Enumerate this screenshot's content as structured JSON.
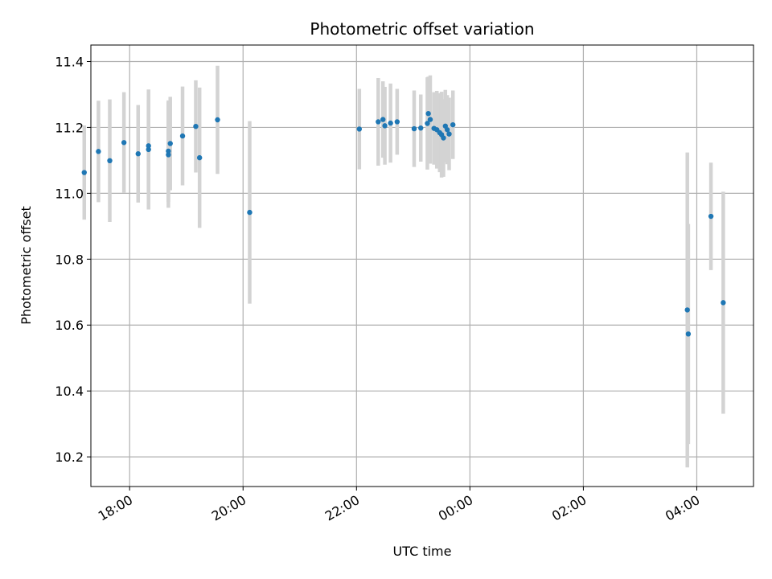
{
  "chart_data": {
    "type": "scatter",
    "title": "Photometric offset variation",
    "xlabel": "UTC time",
    "ylabel": "Photometric offset",
    "x_tick_labels": [
      "18:00",
      "20:00",
      "22:00",
      "00:00",
      "02:00",
      "04:00"
    ],
    "y_tick_labels": [
      "10.2",
      "10.4",
      "10.6",
      "10.8",
      "11.0",
      "11.2",
      "11.4"
    ],
    "x_ticks": [
      "18:00",
      "20:00",
      "22:00",
      "00:00",
      "02:00",
      "04:00"
    ],
    "y_ticks": [
      10.2,
      10.4,
      10.6,
      10.8,
      11.0,
      11.2,
      11.4
    ],
    "xlim": [
      "17:19",
      "05:00"
    ],
    "ylim": [
      10.11,
      11.45
    ],
    "grid": true,
    "marker_color": "#1f77b4",
    "errorbar_color": "#d3d3d3",
    "points": [
      {
        "t": "17:12",
        "y": 11.063,
        "err": 0.143
      },
      {
        "t": "17:27",
        "y": 11.127,
        "err": 0.154
      },
      {
        "t": "17:39",
        "y": 11.099,
        "err": 0.186
      },
      {
        "t": "17:54",
        "y": 11.154,
        "err": 0.153
      },
      {
        "t": "18:09",
        "y": 11.12,
        "err": 0.148
      },
      {
        "t": "18:20",
        "y": 11.133,
        "err": 0.182
      },
      {
        "t": "18:20",
        "y": 11.144,
        "err": 0.14
      },
      {
        "t": "18:41",
        "y": 11.117,
        "err": 0.161
      },
      {
        "t": "18:41",
        "y": 11.128,
        "err": 0.154
      },
      {
        "t": "18:43",
        "y": 11.151,
        "err": 0.142
      },
      {
        "t": "18:56",
        "y": 11.174,
        "err": 0.15
      },
      {
        "t": "19:10",
        "y": 11.203,
        "err": 0.14
      },
      {
        "t": "19:14",
        "y": 11.108,
        "err": 0.213
      },
      {
        "t": "19:33",
        "y": 11.223,
        "err": 0.164
      },
      {
        "t": "20:07",
        "y": 10.942,
        "err": 0.277
      },
      {
        "t": "22:03",
        "y": 11.195,
        "err": 0.122
      },
      {
        "t": "22:23",
        "y": 11.217,
        "err": 0.133
      },
      {
        "t": "22:28",
        "y": 11.224,
        "err": 0.116
      },
      {
        "t": "22:30",
        "y": 11.205,
        "err": 0.118
      },
      {
        "t": "22:36",
        "y": 11.213,
        "err": 0.12
      },
      {
        "t": "22:43",
        "y": 11.217,
        "err": 0.1
      },
      {
        "t": "23:01",
        "y": 11.196,
        "err": 0.116
      },
      {
        "t": "23:08",
        "y": 11.198,
        "err": 0.102
      },
      {
        "t": "23:15",
        "y": 11.212,
        "err": 0.14
      },
      {
        "t": "23:16",
        "y": 11.242,
        "err": 0.112
      },
      {
        "t": "23:18",
        "y": 11.224,
        "err": 0.134
      },
      {
        "t": "23:22",
        "y": 11.197,
        "err": 0.11
      },
      {
        "t": "23:25",
        "y": 11.193,
        "err": 0.118
      },
      {
        "t": "23:28",
        "y": 11.184,
        "err": 0.12
      },
      {
        "t": "23:30",
        "y": 11.178,
        "err": 0.13
      },
      {
        "t": "23:32",
        "y": 11.168,
        "err": 0.118
      },
      {
        "t": "23:34",
        "y": 11.204,
        "err": 0.11
      },
      {
        "t": "23:36",
        "y": 11.193,
        "err": 0.105
      },
      {
        "t": "23:38",
        "y": 11.18,
        "err": 0.11
      },
      {
        "t": "23:42",
        "y": 11.208,
        "err": 0.104
      },
      {
        "t": "03:50",
        "y": 10.646,
        "err": 0.478
      },
      {
        "t": "03:51",
        "y": 10.573,
        "err": 0.334
      },
      {
        "t": "04:15",
        "y": 10.93,
        "err": 0.163
      },
      {
        "t": "04:28",
        "y": 10.668,
        "err": 0.337
      }
    ]
  }
}
